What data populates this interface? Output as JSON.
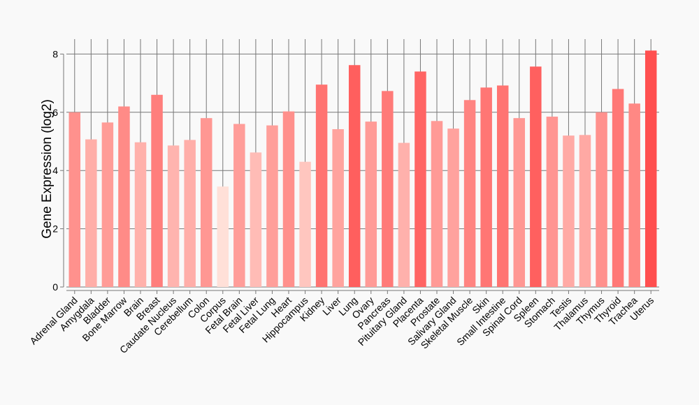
{
  "chart_data": {
    "type": "bar",
    "title": "",
    "xlabel": "",
    "ylabel": "Gene Expression (log2)",
    "ylim": [
      0,
      8.5
    ],
    "yticks": [
      0,
      2,
      4,
      6,
      8
    ],
    "grid": true,
    "legend": "none",
    "colors": {
      "low": "#ffe0d8",
      "high": "#ff4f4f",
      "background": "#f9f9f9",
      "grid": "#777777"
    },
    "categories": [
      "Adrenal Gland",
      "Amygdala",
      "Bladder",
      "Bone Marrow",
      "Brain",
      "Breast",
      "Caudate Nucleus",
      "Cerebellum",
      "Colon",
      "Corpus",
      "Fetal Brain",
      "Fetal Liver",
      "Fetal Lung",
      "Heart",
      "Hippocampus",
      "Kidney",
      "Liver",
      "Lung",
      "Ovary",
      "Pancreas",
      "Pituitary Gland",
      "Placenta",
      "Prostate",
      "Salivary Gland",
      "Skeletal Muscle",
      "Skin",
      "Small Intestine",
      "Spinal Cord",
      "Spleen",
      "Stomach",
      "Testis",
      "Thalamus",
      "Thymus",
      "Thyroid",
      "Trachea",
      "Uterus"
    ],
    "values": [
      6.0,
      5.07,
      5.65,
      6.2,
      4.97,
      6.6,
      4.86,
      5.05,
      5.8,
      3.45,
      5.6,
      4.62,
      5.55,
      6.03,
      4.3,
      6.95,
      5.42,
      7.62,
      5.68,
      6.73,
      4.95,
      7.4,
      5.7,
      5.44,
      6.42,
      6.85,
      6.92,
      5.8,
      7.57,
      5.85,
      5.2,
      5.22,
      6.0,
      6.8,
      6.3,
      8.12
    ]
  }
}
